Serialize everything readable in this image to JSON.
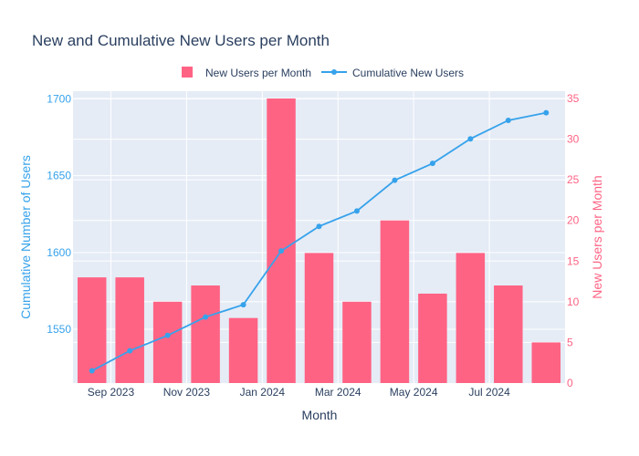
{
  "title": "New and Cumulative New Users per Month",
  "colors": {
    "bar": "#ff6384",
    "line": "#36a2eb",
    "plot_bg": "#e5ecf6",
    "grid": "#ffffff",
    "text": "#2a3f5f"
  },
  "chart_data": {
    "type": "bar",
    "title": "New and Cumulative New Users per Month",
    "xlabel": "Month",
    "ylabel_left": "Cumulative Number of Users",
    "ylabel_right": "New Users per Month",
    "x_dates": [
      "2023-08",
      "2023-09",
      "2023-10",
      "2023-11",
      "2023-12",
      "2024-01",
      "2024-02",
      "2024-03",
      "2024-04",
      "2024-05",
      "2024-06",
      "2024-07",
      "2024-08"
    ],
    "x_tick_labels": [
      {
        "date": "2023-09",
        "label": "Sep 2023"
      },
      {
        "date": "2023-11",
        "label": "Nov 2023"
      },
      {
        "date": "2024-01",
        "label": "Jan 2024"
      },
      {
        "date": "2024-03",
        "label": "Mar 2024"
      },
      {
        "date": "2024-05",
        "label": "May 2024"
      },
      {
        "date": "2024-07",
        "label": "Jul 2024"
      }
    ],
    "series": [
      {
        "name": "New Users per Month",
        "type": "bar",
        "axis": "right",
        "values": [
          13,
          13,
          10,
          12,
          8,
          35,
          16,
          10,
          20,
          11,
          16,
          12,
          5
        ]
      },
      {
        "name": "Cumulative New Users",
        "type": "line",
        "axis": "left",
        "values": [
          1523,
          1536,
          1546,
          1558,
          1566,
          1601,
          1617,
          1627,
          1647,
          1658,
          1674,
          1686,
          1691
        ]
      }
    ],
    "ylim_left": [
      1515,
      1705
    ],
    "yticks_left": [
      1550,
      1600,
      1650,
      1700
    ],
    "ylim_right": [
      0,
      35.9
    ],
    "yticks_right": [
      0,
      5,
      10,
      15,
      20,
      25,
      30,
      35
    ],
    "grid": true,
    "legend_position": "top-center, horizontal"
  }
}
